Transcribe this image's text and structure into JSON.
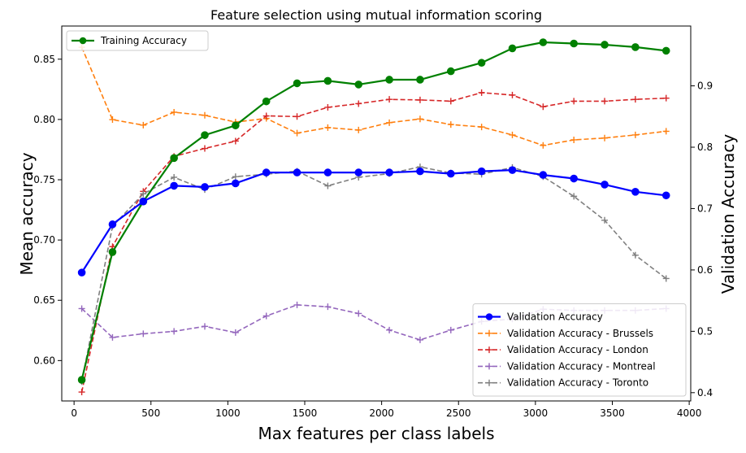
{
  "chart_data": {
    "type": "line",
    "title": "Feature selection using mutual information scoring",
    "xlabel": "Max features per class labels",
    "ylabel_left": "Mean accuracy",
    "ylabel_right": "Validation Accuracy",
    "xlim": [
      -80,
      4010
    ],
    "ylim_left": [
      0.5665,
      0.8775
    ],
    "ylim_right": [
      0.3865,
      0.9975
    ],
    "x_ticks": [
      0,
      500,
      1000,
      1500,
      2000,
      2500,
      3000,
      3500,
      4000
    ],
    "y_ticks_left": [
      0.6,
      0.65,
      0.7,
      0.75,
      0.8,
      0.85
    ],
    "y_ticks_right": [
      0.4,
      0.5,
      0.6,
      0.7,
      0.8,
      0.9
    ],
    "x": [
      50,
      250,
      450,
      650,
      850,
      1050,
      1250,
      1450,
      1650,
      1850,
      2050,
      2250,
      2450,
      2650,
      2850,
      3050,
      3250,
      3450,
      3650,
      3850
    ],
    "grid": false,
    "series": [
      {
        "name": "Training Accuracy",
        "axis": "left",
        "color": "#008000",
        "style": "solid",
        "marker": "o",
        "legend": "upper-left",
        "values": [
          0.584,
          0.69,
          0.732,
          0.768,
          0.787,
          0.795,
          0.815,
          0.83,
          0.832,
          0.829,
          0.833,
          0.833,
          0.84,
          0.847,
          0.859,
          0.864,
          0.863,
          0.862,
          0.86,
          0.857
        ]
      },
      {
        "name": "Validation Accuracy",
        "axis": "left",
        "color": "#0000ff",
        "style": "solid",
        "marker": "o",
        "legend": "lower-right",
        "values": [
          0.673,
          0.713,
          0.732,
          0.745,
          0.744,
          0.747,
          0.756,
          0.756,
          0.756,
          0.756,
          0.756,
          0.757,
          0.755,
          0.757,
          0.758,
          0.754,
          0.751,
          0.746,
          0.74,
          0.737
        ]
      },
      {
        "name": "Validation Accuracy - Brussels",
        "axis": "right",
        "color": "#ff7f0e",
        "style": "dashed",
        "marker": "+",
        "legend": "lower-right",
        "values": [
          0.963,
          0.845,
          0.836,
          0.857,
          0.852,
          0.841,
          0.847,
          0.823,
          0.832,
          0.828,
          0.84,
          0.846,
          0.837,
          0.833,
          0.82,
          0.803,
          0.812,
          0.815,
          0.82,
          0.826
        ]
      },
      {
        "name": "Validation Accuracy - London",
        "axis": "right",
        "color": "#d62728",
        "style": "dashed",
        "marker": "+",
        "legend": "lower-right",
        "values": [
          0.401,
          0.638,
          0.728,
          0.785,
          0.798,
          0.81,
          0.851,
          0.85,
          0.865,
          0.871,
          0.878,
          0.877,
          0.875,
          0.889,
          0.885,
          0.866,
          0.875,
          0.875,
          0.878,
          0.88
        ]
      },
      {
        "name": "Validation Accuracy - Montreal",
        "axis": "right",
        "color": "#9467bd",
        "style": "dashed",
        "marker": "+",
        "legend": "lower-right",
        "values": [
          0.537,
          0.49,
          0.496,
          0.5,
          0.508,
          0.498,
          0.525,
          0.543,
          0.54,
          0.529,
          0.502,
          0.486,
          0.502,
          0.516,
          0.52,
          0.536,
          0.534,
          0.534,
          0.534,
          0.537
        ]
      },
      {
        "name": "Validation Accuracy - Toronto",
        "axis": "right",
        "color": "#7f7f7f",
        "style": "dashed",
        "marker": "+",
        "legend": "lower-right",
        "values": [
          0.418,
          0.671,
          0.724,
          0.751,
          0.731,
          0.752,
          0.756,
          0.761,
          0.737,
          0.751,
          0.757,
          0.768,
          0.758,
          0.756,
          0.767,
          0.752,
          0.72,
          0.681,
          0.624,
          0.586
        ]
      }
    ]
  }
}
